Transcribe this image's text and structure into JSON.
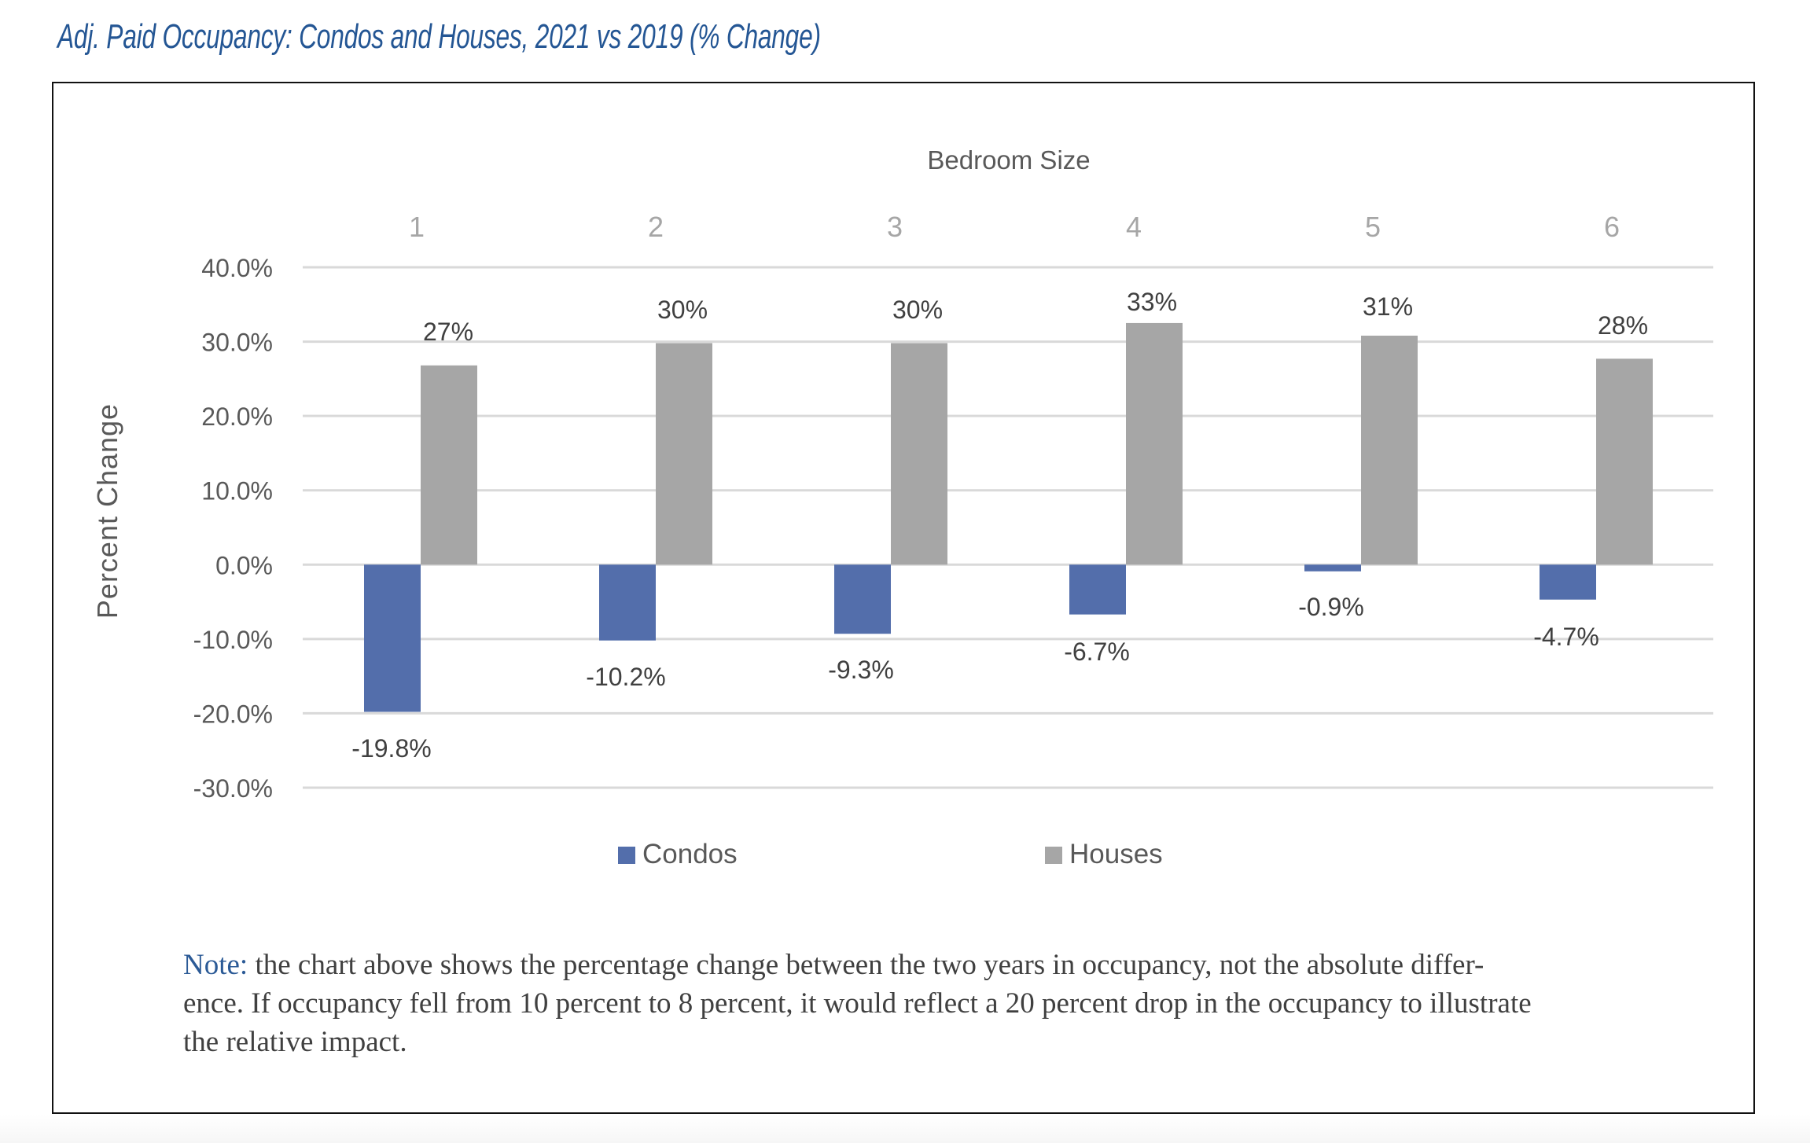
{
  "title": "Adj. Paid Occupancy: Condos and Houses, 2021 vs 2019 (% Change)",
  "chart_data": {
    "type": "bar",
    "title": "Bedroom Size",
    "xlabel": "Bedroom Size",
    "ylabel": "Percent Change",
    "categories": [
      "1",
      "2",
      "3",
      "4",
      "5",
      "6"
    ],
    "ylim": [
      -30,
      40
    ],
    "yticks": [
      40,
      30,
      20,
      10,
      0,
      -10,
      -20,
      -30
    ],
    "ytick_labels": [
      "40.0%",
      "30.0%",
      "20.0%",
      "10.0%",
      "0.0%",
      "-10.0%",
      "-20.0%",
      "-30.0%"
    ],
    "grid": true,
    "xaxis_position": "top",
    "legend_position": "bottom",
    "series": [
      {
        "name": "Condos",
        "color": "#536EAB",
        "values": [
          -19.8,
          -10.2,
          -9.3,
          -6.7,
          -0.9,
          -4.7
        ],
        "labels": [
          "-19.8%",
          "-10.2%",
          "-9.3%",
          "-6.7%",
          "-0.9%",
          "-4.7%"
        ]
      },
      {
        "name": "Houses",
        "color": "#A6A6A6",
        "values": [
          26.8,
          29.8,
          29.8,
          32.5,
          30.8,
          27.7
        ],
        "labels": [
          "27%",
          "30%",
          "30%",
          "33%",
          "31%",
          "28%"
        ]
      }
    ]
  },
  "note": {
    "label": "Note:",
    "lines": [
      " the chart above shows the percentage change between the two years in occupancy, not the absolute differ-",
      "ence. If occupancy fell from 10 percent to 8 percent, it would reflect a 20 percent drop in the occupancy to illustrate",
      "the relative impact."
    ]
  },
  "colors": {
    "title": "#245694",
    "note_label": "#2B5A96",
    "gridline": "#D9D9D9",
    "tick_text": "#595959",
    "category_text": "#A6A6A6"
  }
}
